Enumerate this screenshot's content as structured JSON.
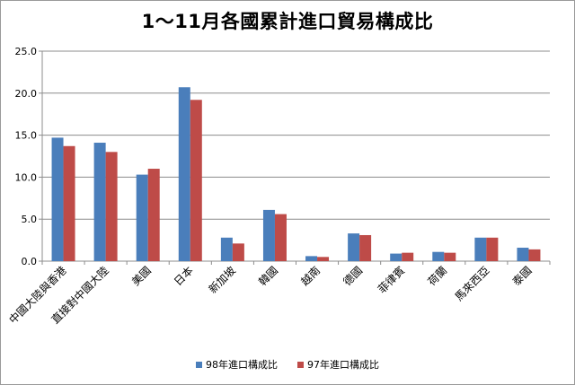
{
  "chart_data": {
    "type": "bar",
    "title": "1～11月各國累計進口貿易構成比",
    "categories": [
      "中國大陸與香港",
      "直接對中國大陸",
      "美國",
      "日本",
      "新加坡",
      "韓國",
      "越南",
      "德國",
      "菲律賓",
      "荷蘭",
      "馬來西亞",
      "泰國"
    ],
    "series": [
      {
        "name": "98年進口構成比",
        "color": "#4a7ebb",
        "values": [
          14.7,
          14.1,
          10.3,
          20.7,
          2.8,
          6.1,
          0.6,
          3.3,
          0.9,
          1.1,
          2.8,
          1.6
        ]
      },
      {
        "name": "97年進口構成比",
        "color": "#be4b48",
        "values": [
          13.7,
          13.0,
          11.0,
          19.2,
          2.1,
          5.6,
          0.5,
          3.1,
          1.0,
          1.0,
          2.8,
          1.4
        ]
      }
    ],
    "ylim": [
      0,
      25
    ],
    "yticks": [
      "0.0",
      "5.0",
      "10.0",
      "15.0",
      "20.0",
      "25.0"
    ],
    "grid": true,
    "legend_position": "bottom"
  }
}
